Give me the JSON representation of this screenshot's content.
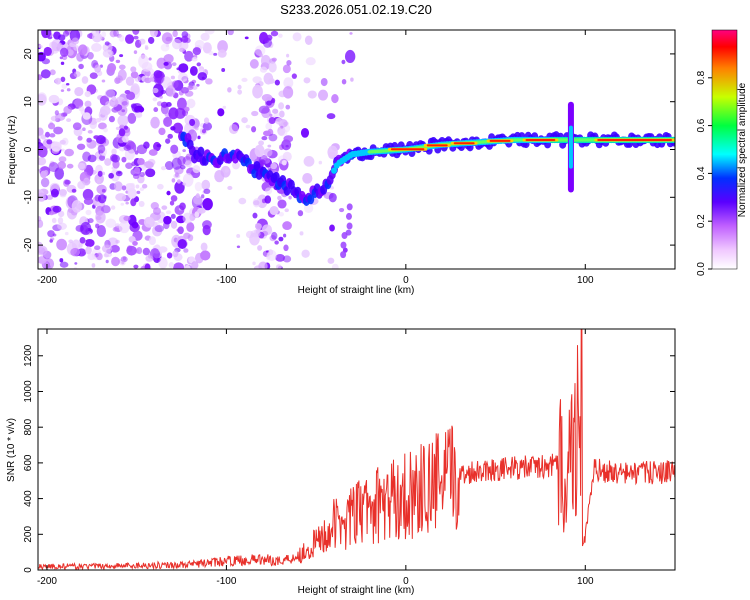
{
  "figure": {
    "title": "S233.2026.051.02.19.C20"
  },
  "colors": {
    "spectrogram_purple": "#8a2be2",
    "snr_line": "#e8302a",
    "axis": "#000000"
  },
  "chart_data": [
    {
      "type": "heatmap",
      "title": "S233.2026.051.02.19.C20",
      "xlabel": "Height of straight line (km)",
      "ylabel": "Frequency (Hz)",
      "xlim": [
        -205,
        150
      ],
      "ylim": [
        -25,
        25
      ],
      "x_ticks": [
        -200,
        -100,
        0,
        100
      ],
      "y_ticks": [
        -20,
        -10,
        0,
        10,
        20
      ],
      "colorbar": {
        "label": "Normalized spectral amplitude",
        "range": [
          0.0,
          1.0
        ],
        "ticks": [
          0.0,
          0.2,
          0.4,
          0.6,
          0.8
        ],
        "colormap": [
          "#ffffff",
          "#ff00ff",
          "#7b00ff",
          "#0000ff",
          "#00ffff",
          "#00ff00",
          "#ffff00",
          "#ff0000",
          "#ff0066"
        ]
      },
      "ridge": [
        {
          "x": -120,
          "y": -1
        },
        {
          "x": -105,
          "y": -2
        },
        {
          "x": -95,
          "y": -1
        },
        {
          "x": -85,
          "y": -4
        },
        {
          "x": -75,
          "y": -6
        },
        {
          "x": -65,
          "y": -8
        },
        {
          "x": -55,
          "y": -10
        },
        {
          "x": -45,
          "y": -8
        },
        {
          "x": -38,
          "y": -3
        },
        {
          "x": -30,
          "y": -1
        },
        {
          "x": -20,
          "y": -0.5
        },
        {
          "x": 0,
          "y": 0
        },
        {
          "x": 20,
          "y": 1
        },
        {
          "x": 40,
          "y": 1.5
        },
        {
          "x": 60,
          "y": 2
        },
        {
          "x": 90,
          "y": 2
        },
        {
          "x": 120,
          "y": 2
        },
        {
          "x": 150,
          "y": 2
        }
      ]
    },
    {
      "type": "line",
      "xlabel": "Height of straight line (km)",
      "ylabel": "SNR (10 * v/v)",
      "xlim": [
        -205,
        150
      ],
      "ylim": [
        0,
        1350
      ],
      "x_ticks": [
        -200,
        -100,
        0,
        100
      ],
      "y_ticks": [
        0,
        200,
        400,
        600,
        800,
        1000,
        1200
      ],
      "series": [
        {
          "x": [
            -205,
            -180,
            -150,
            -120,
            -100,
            -80,
            -70,
            -60,
            -50,
            -40,
            -30,
            -20,
            -10,
            0,
            10,
            20,
            30,
            40,
            60,
            80,
            90,
            95,
            98,
            100,
            105,
            120,
            150
          ],
          "y": [
            20,
            20,
            25,
            30,
            50,
            60,
            50,
            80,
            150,
            250,
            300,
            350,
            380,
            420,
            450,
            500,
            530,
            560,
            570,
            580,
            600,
            700,
            1350,
            200,
            560,
            540,
            550
          ]
        }
      ]
    }
  ]
}
